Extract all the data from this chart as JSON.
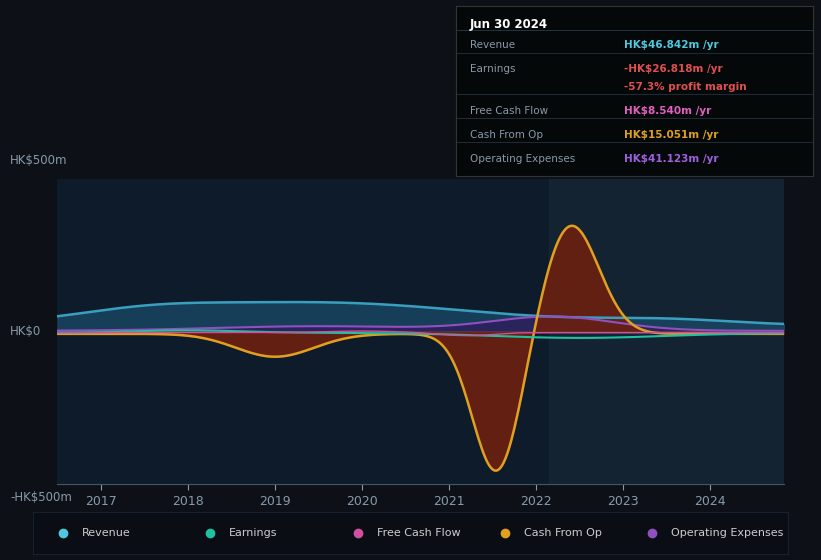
{
  "bg_color": "#0d1117",
  "chart_bg": "#0d1b2a",
  "highlight_bg": "#1a2a3a",
  "title_date": "Jun 30 2024",
  "info_box_rows": [
    {
      "label": "Revenue",
      "value": "HK$46.842m /yr",
      "color": "#4ec9e0"
    },
    {
      "label": "Earnings",
      "value": "-HK$26.818m /yr",
      "color": "#e05050"
    },
    {
      "label": "",
      "value": "-57.3% profit margin",
      "color": "#e05050"
    },
    {
      "label": "Free Cash Flow",
      "value": "HK$8.540m /yr",
      "color": "#e060c0"
    },
    {
      "label": "Cash From Op",
      "value": "HK$15.051m /yr",
      "color": "#e0a020"
    },
    {
      "label": "Operating Expenses",
      "value": "HK$41.123m /yr",
      "color": "#a060e0"
    }
  ],
  "ylabel_top": "HK$500m",
  "ylabel_zero": "HK$0",
  "ylabel_bottom": "-HK$500m",
  "ylim": [
    -600,
    600
  ],
  "xlim": [
    2016.5,
    2024.85
  ],
  "x_ticks": [
    2017,
    2018,
    2019,
    2020,
    2021,
    2022,
    2023,
    2024
  ],
  "revenue_color": "#3a9fbf",
  "revenue_fill": "#1a4a6a",
  "earnings_color": "#20c0a0",
  "fcf_color": "#d050a0",
  "cashop_color": "#e0a020",
  "cashop_fill": "#6a2010",
  "opex_color": "#9050c0",
  "opex_fill": "#3a1060",
  "legend_items": [
    {
      "label": "Revenue",
      "color": "#4ec9e0"
    },
    {
      "label": "Earnings",
      "color": "#20c0a0"
    },
    {
      "label": "Free Cash Flow",
      "color": "#d050a0"
    },
    {
      "label": "Cash From Op",
      "color": "#e0a020"
    },
    {
      "label": "Operating Expenses",
      "color": "#9050c0"
    }
  ]
}
